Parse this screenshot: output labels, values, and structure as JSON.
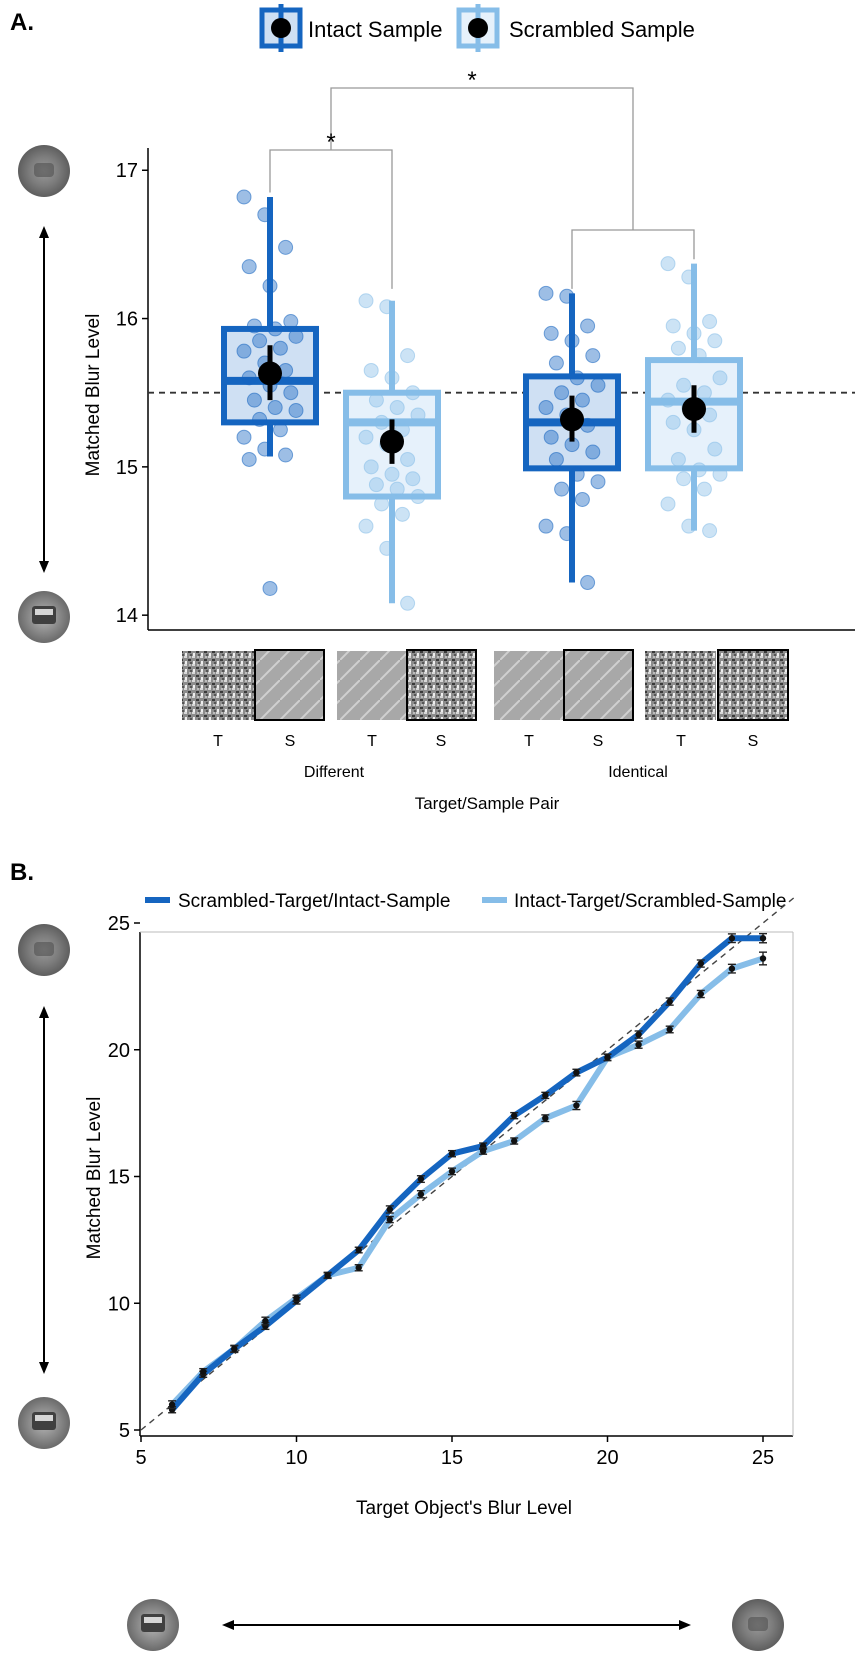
{
  "panel_a": {
    "label": "A.",
    "legend": [
      "Intact Sample",
      "Scrambled Sample"
    ],
    "xlabel": "Target/Sample Pair",
    "ylabel": "Matched Blur Level",
    "group_labels": [
      "Different",
      "Identical"
    ],
    "ts_labels": [
      "T",
      "S",
      "T",
      "S",
      "T",
      "S",
      "T",
      "S"
    ],
    "significance": [
      "*",
      "*"
    ],
    "colors": {
      "intact": "#1565c0",
      "scrambled": "#86bde8",
      "mean": "#000000"
    }
  },
  "panel_b": {
    "label": "B.",
    "legend": [
      "Scrambled-Target/Intact-Sample",
      "Intact-Target/Scrambled-Sample"
    ],
    "xlabel": "Target Object's Blur Level",
    "ylabel": "Matched Blur Level",
    "colors": {
      "series1": "#1565c0",
      "series2": "#86bde8"
    }
  },
  "chart_data": [
    {
      "type": "box",
      "ylim": [
        13.9,
        17.15
      ],
      "yticks": [
        14,
        15,
        16,
        17
      ],
      "reference_line": 15.5,
      "groups": [
        "Different",
        "Identical"
      ],
      "series": [
        {
          "name": "Intact Sample",
          "group": "Different",
          "q1": 15.3,
          "median": 15.58,
          "q3": 15.93,
          "whisker_low": 15.07,
          "whisker_high": 16.82,
          "mean": 15.63,
          "ci": [
            15.45,
            15.82
          ],
          "points": [
            16.82,
            16.7,
            16.48,
            16.35,
            16.22,
            15.98,
            15.95,
            15.93,
            15.88,
            15.85,
            15.8,
            15.78,
            15.7,
            15.65,
            15.6,
            15.55,
            15.5,
            15.45,
            15.4,
            15.38,
            15.32,
            15.25,
            15.2,
            15.12,
            15.08,
            15.05,
            14.18
          ]
        },
        {
          "name": "Scrambled Sample",
          "group": "Different",
          "q1": 14.8,
          "median": 15.3,
          "q3": 15.5,
          "whisker_low": 14.08,
          "whisker_high": 16.12,
          "mean": 15.17,
          "ci": [
            15.02,
            15.32
          ],
          "points": [
            16.12,
            16.08,
            15.75,
            15.65,
            15.6,
            15.5,
            15.45,
            15.4,
            15.35,
            15.3,
            15.25,
            15.2,
            15.15,
            15.05,
            15.0,
            14.95,
            14.92,
            14.88,
            14.85,
            14.8,
            14.75,
            14.68,
            14.6,
            14.45,
            14.08
          ]
        },
        {
          "name": "Intact Sample",
          "group": "Identical",
          "q1": 14.99,
          "median": 15.3,
          "q3": 15.61,
          "whisker_low": 14.22,
          "whisker_high": 16.17,
          "mean": 15.32,
          "ci": [
            15.17,
            15.48
          ],
          "points": [
            16.17,
            16.15,
            15.95,
            15.9,
            15.85,
            15.75,
            15.7,
            15.6,
            15.55,
            15.5,
            15.45,
            15.4,
            15.35,
            15.28,
            15.2,
            15.15,
            15.1,
            15.05,
            14.95,
            14.9,
            14.85,
            14.78,
            14.6,
            14.55,
            14.22
          ]
        },
        {
          "name": "Scrambled Sample",
          "group": "Identical",
          "q1": 14.99,
          "median": 15.44,
          "q3": 15.72,
          "whisker_low": 14.57,
          "whisker_high": 16.37,
          "mean": 15.39,
          "ci": [
            15.23,
            15.55
          ],
          "points": [
            16.37,
            16.28,
            15.98,
            15.95,
            15.9,
            15.85,
            15.8,
            15.75,
            15.6,
            15.55,
            15.5,
            15.45,
            15.4,
            15.35,
            15.3,
            15.25,
            15.12,
            15.05,
            14.98,
            14.95,
            14.92,
            14.85,
            14.75,
            14.6,
            14.57
          ]
        }
      ]
    },
    {
      "type": "line",
      "xlim": [
        5,
        26
      ],
      "ylim": [
        5,
        26
      ],
      "xticks": [
        5,
        10,
        15,
        20,
        25
      ],
      "yticks": [
        5,
        10,
        15,
        20,
        25
      ],
      "identity_line": true,
      "x": [
        6,
        7,
        8,
        9,
        10,
        11,
        12,
        13,
        14,
        15,
        16,
        17,
        18,
        19,
        20,
        21,
        22,
        23,
        24,
        25
      ],
      "series": [
        {
          "name": "Scrambled-Target/Intact-Sample",
          "values": [
            5.8,
            7.2,
            8.2,
            9.1,
            10.1,
            11.1,
            12.1,
            13.7,
            14.9,
            15.9,
            16.2,
            17.4,
            18.2,
            19.1,
            19.7,
            20.6,
            21.9,
            23.4,
            24.4,
            24.4
          ],
          "errors": [
            0.12,
            0.12,
            0.12,
            0.13,
            0.13,
            0.1,
            0.11,
            0.14,
            0.13,
            0.12,
            0.12,
            0.12,
            0.12,
            0.13,
            0.12,
            0.14,
            0.14,
            0.14,
            0.17,
            0.18
          ]
        },
        {
          "name": "Intact-Target/Scrambled-Sample",
          "values": [
            6.0,
            7.3,
            8.2,
            9.3,
            10.2,
            11.1,
            11.4,
            13.3,
            14.3,
            15.2,
            16.0,
            16.4,
            17.3,
            17.8,
            19.7,
            20.2,
            20.8,
            22.2,
            23.2,
            23.6
          ],
          "errors": [
            0.15,
            0.12,
            0.14,
            0.15,
            0.12,
            0.12,
            0.12,
            0.12,
            0.14,
            0.13,
            0.12,
            0.12,
            0.13,
            0.16,
            0.13,
            0.14,
            0.13,
            0.14,
            0.17,
            0.25
          ]
        }
      ]
    }
  ]
}
